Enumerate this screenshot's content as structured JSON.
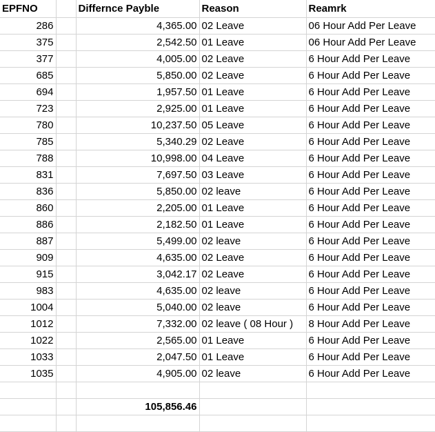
{
  "headers": {
    "epfno": "EPFNO",
    "payable": "Differnce Payble",
    "reason": "Reason",
    "remark": "Reamrk"
  },
  "rows": [
    {
      "epfno": "286",
      "payable": "4,365.00",
      "reason": "02 Leave",
      "remark": "06 Hour Add Per Leave"
    },
    {
      "epfno": "375",
      "payable": "2,542.50",
      "reason": "01 Leave",
      "remark": "06 Hour Add Per Leave"
    },
    {
      "epfno": "377",
      "payable": "4,005.00",
      "reason": "02 Leave",
      "remark": "6 Hour Add Per Leave"
    },
    {
      "epfno": "685",
      "payable": "5,850.00",
      "reason": "02 Leave",
      "remark": "6 Hour Add Per Leave"
    },
    {
      "epfno": "694",
      "payable": "1,957.50",
      "reason": "01 Leave",
      "remark": "6 Hour Add Per Leave"
    },
    {
      "epfno": "723",
      "payable": "2,925.00",
      "reason": "01 Leave",
      "remark": "6 Hour Add Per Leave"
    },
    {
      "epfno": "780",
      "payable": "10,237.50",
      "reason": "05 Leave",
      "remark": "6 Hour Add Per Leave"
    },
    {
      "epfno": "785",
      "payable": "5,340.29",
      "reason": "02 Leave",
      "remark": "6 Hour Add Per Leave"
    },
    {
      "epfno": "788",
      "payable": "10,998.00",
      "reason": "04 Leave",
      "remark": "6 Hour Add Per Leave"
    },
    {
      "epfno": "831",
      "payable": "7,697.50",
      "reason": "03 Leave",
      "remark": "6 Hour Add Per Leave"
    },
    {
      "epfno": "836",
      "payable": "5,850.00",
      "reason": "02 leave",
      "remark": "6 Hour Add Per Leave"
    },
    {
      "epfno": "860",
      "payable": "2,205.00",
      "reason": "01 Leave",
      "remark": "6 Hour Add Per Leave"
    },
    {
      "epfno": "886",
      "payable": "2,182.50",
      "reason": "01 Leave",
      "remark": "6 Hour Add Per Leave"
    },
    {
      "epfno": "887",
      "payable": "5,499.00",
      "reason": "02 leave",
      "remark": "6 Hour Add Per Leave"
    },
    {
      "epfno": "909",
      "payable": "4,635.00",
      "reason": "02 Leave",
      "remark": "6 Hour Add Per Leave"
    },
    {
      "epfno": "915",
      "payable": "3,042.17",
      "reason": "02 Leave",
      "remark": "6 Hour Add Per Leave"
    },
    {
      "epfno": "983",
      "payable": "4,635.00",
      "reason": "02 leave",
      "remark": "6 Hour Add Per Leave"
    },
    {
      "epfno": "1004",
      "payable": "5,040.00",
      "reason": "02 leave",
      "remark": "6 Hour Add Per Leave"
    },
    {
      "epfno": "1012",
      "payable": "7,332.00",
      "reason": "02 leave ( 08 Hour )",
      "remark": "8 Hour Add Per Leave"
    },
    {
      "epfno": "1022",
      "payable": "2,565.00",
      "reason": "01 Leave",
      "remark": "6 Hour Add Per Leave"
    },
    {
      "epfno": "1033",
      "payable": "2,047.50",
      "reason": "01 Leave",
      "remark": "6 Hour Add Per Leave"
    },
    {
      "epfno": "1035",
      "payable": "4,905.00",
      "reason": "02 leave",
      "remark": "6 Hour Add Per Leave"
    }
  ],
  "total": "105,856.46"
}
